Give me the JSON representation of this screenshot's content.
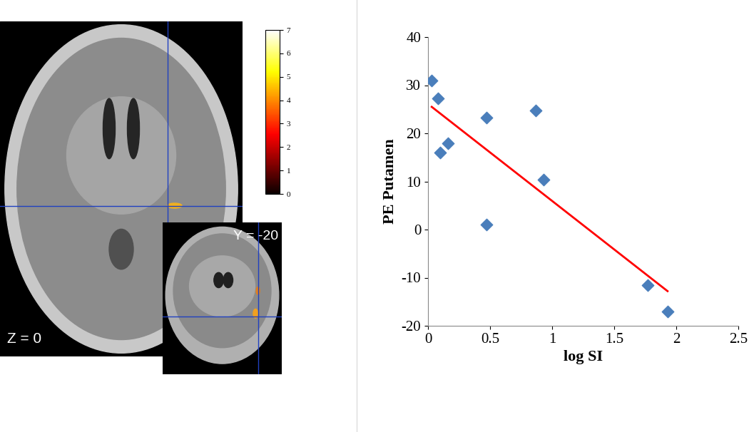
{
  "chart_data": [
    {
      "type": "image",
      "annotations": [
        "Z = 0",
        "Y = -20"
      ],
      "colorbar": {
        "range": [
          0,
          7
        ],
        "ticks": [
          0,
          1,
          2,
          3,
          4,
          5,
          6,
          7
        ]
      }
    },
    {
      "type": "scatter",
      "x_label": "log SI",
      "y_label": "PE Putamen",
      "xlim": [
        0,
        2.5
      ],
      "xticks": [
        0,
        0.5,
        1,
        1.5,
        2,
        2.5
      ],
      "ylim": [
        -20,
        40
      ],
      "yticks": [
        -20,
        -10,
        0,
        10,
        20,
        30,
        40
      ],
      "grid": false,
      "series": [
        {
          "type": "scatter",
          "color": "#4a7ebb",
          "marker": "diamond",
          "x": [
            0.03,
            0.08,
            0.1,
            0.16,
            0.47,
            0.47,
            0.87,
            0.93,
            1.77,
            1.93
          ],
          "values": [
            31,
            27.3,
            16,
            18,
            23.2,
            1,
            24.8,
            10.3,
            -11.5,
            -17
          ]
        },
        {
          "type": "line",
          "color": "#ff0000",
          "line_style": "solid",
          "x": [
            0.03,
            1.93
          ],
          "values": [
            25.5,
            -12.8
          ]
        }
      ]
    }
  ]
}
